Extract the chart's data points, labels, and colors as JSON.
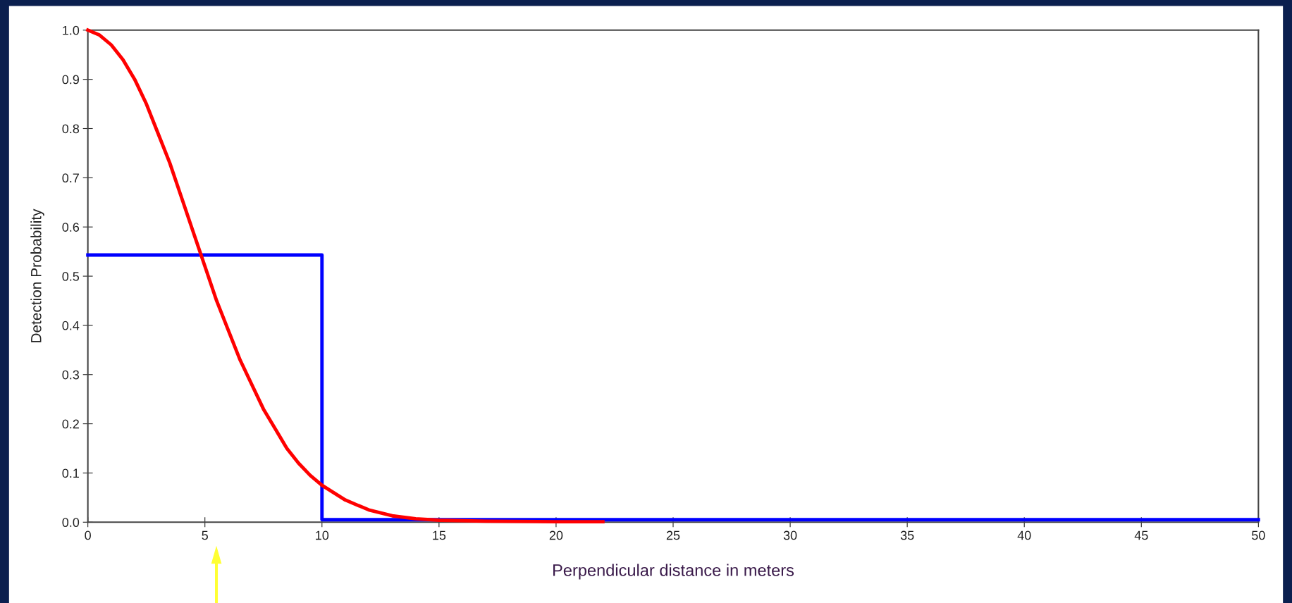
{
  "chart_data": {
    "type": "line",
    "xlabel": "Perpendicular distance in meters",
    "ylabel": "Detection Probability",
    "series": [
      {
        "color": "#0000ff",
        "x": [
          0,
          10,
          10,
          50
        ],
        "values": [
          0.543,
          0.543,
          0.005,
          0.005
        ]
      },
      {
        "color": "#ff0000",
        "x": [
          0,
          0.5,
          1,
          1.5,
          2,
          2.5,
          3,
          3.5,
          4,
          4.5,
          5,
          5.5,
          6,
          6.5,
          7,
          7.5,
          8,
          8.5,
          9,
          9.5,
          10,
          11,
          12,
          13,
          14,
          15,
          17,
          20,
          22
        ],
        "values": [
          1.0,
          0.99,
          0.97,
          0.94,
          0.9,
          0.85,
          0.79,
          0.73,
          0.66,
          0.59,
          0.52,
          0.45,
          0.39,
          0.33,
          0.28,
          0.23,
          0.19,
          0.15,
          0.12,
          0.095,
          0.075,
          0.045,
          0.025,
          0.013,
          0.007,
          0.004,
          0.002,
          0.001,
          0.001
        ]
      }
    ],
    "xlim": [
      0,
      50
    ],
    "xticks": [
      0,
      5,
      10,
      15,
      20,
      25,
      30,
      35,
      40,
      45,
      50
    ],
    "ylim": [
      0,
      1
    ],
    "yticks": [
      {
        "value": 0,
        "label": "0.0"
      },
      {
        "value": 0.1,
        "label": "0.1"
      },
      {
        "value": 0.2,
        "label": "0.2"
      },
      {
        "value": 0.3,
        "label": "0.3"
      },
      {
        "value": 0.4,
        "label": "0.4"
      },
      {
        "value": 0.5,
        "label": "0.5"
      },
      {
        "value": 0.6,
        "label": "0.6"
      },
      {
        "value": 0.7,
        "label": "0.7"
      },
      {
        "value": 0.8,
        "label": "0.8"
      },
      {
        "value": 0.9,
        "label": "0.9"
      },
      {
        "value": 1,
        "label": "1.0"
      }
    ],
    "grid": false,
    "legend": false
  }
}
